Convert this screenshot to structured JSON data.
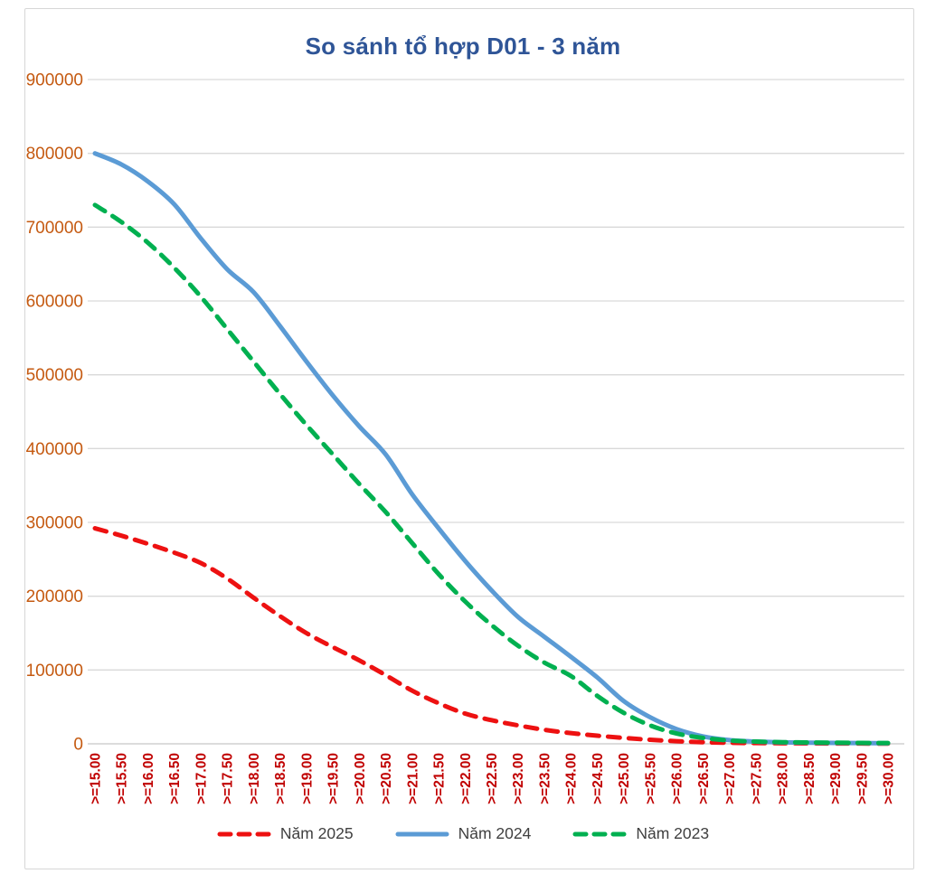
{
  "chart_data": {
    "type": "line",
    "title": "So sánh tổ hợp D01 - 3 năm",
    "title_color": "#2F5597",
    "xlabel": "",
    "ylabel": "",
    "grid": true,
    "legend_position": "bottom",
    "ylim": [
      0,
      900000
    ],
    "y_ticks": [
      900000,
      800000,
      700000,
      600000,
      500000,
      400000,
      300000,
      200000,
      100000,
      0
    ],
    "y_tick_color": "#C55A11",
    "x_tick_color": "#C00000",
    "grid_color": "#D9D9D9",
    "axis_line_color": "#C6C6C6",
    "categories": [
      ">=15.00",
      ">=15.50",
      ">=16.00",
      ">=16.50",
      ">=17.00",
      ">=17.50",
      ">=18.00",
      ">=18.50",
      ">=19.00",
      ">=19.50",
      ">=20.00",
      ">=20.50",
      ">=21.00",
      ">=21.50",
      ">=22.00",
      ">=22.50",
      ">=23.00",
      ">=23.50",
      ">=24.00",
      ">=24.50",
      ">=25.00",
      ">=25.50",
      ">=26.00",
      ">=26.50",
      ">=27.00",
      ">=27.50",
      ">=28.00",
      ">=28.50",
      ">=29.00",
      ">=29.50",
      ">=30.00"
    ],
    "series": [
      {
        "name": "Năm 2025",
        "color": "#ED1111",
        "dash": true,
        "values": [
          292000,
          282000,
          271000,
          259000,
          245000,
          224000,
          198000,
          173000,
          150000,
          131000,
          113000,
          93000,
          72000,
          55000,
          41000,
          32000,
          25000,
          19000,
          14500,
          11000,
          8000,
          5500,
          3500,
          2200,
          1400,
          1000,
          800,
          600,
          500,
          400,
          300
        ]
      },
      {
        "name": "Năm 2024",
        "color": "#5B9BD5",
        "dash": false,
        "values": [
          800000,
          785000,
          762000,
          731000,
          685000,
          643000,
          612000,
          566000,
          518000,
          472000,
          430000,
          392000,
          338000,
          292000,
          248000,
          208000,
          172000,
          145000,
          118000,
          90000,
          58000,
          36000,
          20000,
          10000,
          5000,
          3000,
          2000,
          1500,
          1200,
          1000,
          800
        ]
      },
      {
        "name": "Năm 2023",
        "color": "#00B050",
        "dash": true,
        "values": [
          730000,
          707000,
          679000,
          645000,
          606000,
          562000,
          518000,
          474000,
          432000,
          392000,
          352000,
          314000,
          272000,
          230000,
          193000,
          161000,
          133000,
          110000,
          92000,
          65000,
          42000,
          25000,
          14000,
          8000,
          4500,
          3000,
          2200,
          1800,
          1500,
          1200,
          1000
        ]
      }
    ]
  }
}
